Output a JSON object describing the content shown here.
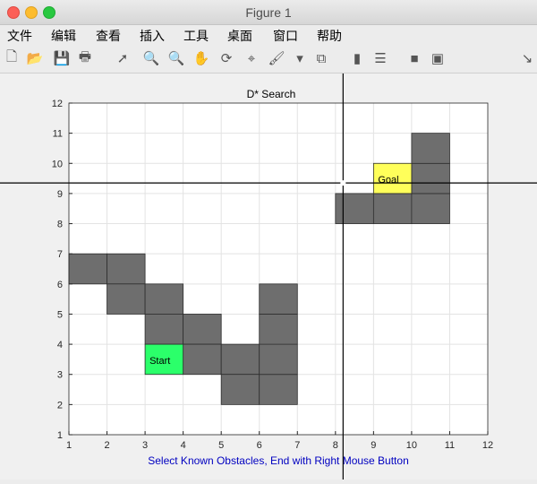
{
  "window": {
    "title": "Figure 1"
  },
  "menu": [
    "文件",
    "编辑",
    "查看",
    "插入",
    "工具",
    "桌面",
    "窗口",
    "帮助"
  ],
  "toolbar": [
    {
      "name": "new-figure-icon",
      "glyph": "🗋"
    },
    {
      "name": "open-file-icon",
      "glyph": "📂"
    },
    {
      "name": "save-icon",
      "glyph": "💾"
    },
    {
      "name": "print-icon",
      "glyph": "🖶"
    },
    {
      "name": "pointer-icon",
      "glyph": "➚"
    },
    {
      "name": "zoom-in-icon",
      "glyph": "🔍"
    },
    {
      "name": "zoom-out-icon",
      "glyph": "🔍"
    },
    {
      "name": "pan-hand-icon",
      "glyph": "✋"
    },
    {
      "name": "rotate-icon",
      "glyph": "⟳"
    },
    {
      "name": "data-cursor-icon",
      "glyph": "⌖"
    },
    {
      "name": "brush-icon",
      "glyph": "🖌"
    },
    {
      "name": "brush-dropdown-icon",
      "glyph": "▾"
    },
    {
      "name": "link-plot-icon",
      "glyph": "⧉"
    },
    {
      "name": "colorbar-icon",
      "glyph": "▮"
    },
    {
      "name": "legend-icon",
      "glyph": "☰"
    },
    {
      "name": "hide-plot-tools-icon",
      "glyph": "■"
    },
    {
      "name": "show-plot-tools-icon",
      "glyph": "▣"
    },
    {
      "name": "dock-arrow-icon",
      "glyph": "↘"
    }
  ],
  "plot": {
    "title": "D* Search",
    "caption": "Select Known Obstacles, End with Right Mouse Button",
    "caption_color": "#0000c0",
    "obstacle_color": "#6e6e6e",
    "start_color": "#2bff6a",
    "goal_color": "#ffff5a"
  },
  "chart_data": {
    "type": "heatmap",
    "title": "D* Search",
    "xlim": [
      1,
      12
    ],
    "ylim": [
      1,
      12
    ],
    "xticks": [
      "1",
      "2",
      "3",
      "4",
      "5",
      "6",
      "7",
      "8",
      "9",
      "10",
      "11",
      "12"
    ],
    "yticks": [
      "1",
      "2",
      "3",
      "4",
      "5",
      "6",
      "7",
      "8",
      "9",
      "10",
      "11",
      "12"
    ],
    "grid": true,
    "obstacles": [
      [
        1,
        6
      ],
      [
        2,
        6
      ],
      [
        2,
        5
      ],
      [
        3,
        5
      ],
      [
        3,
        4
      ],
      [
        4,
        4
      ],
      [
        4,
        3
      ],
      [
        5,
        3
      ],
      [
        5,
        2
      ],
      [
        6,
        2
      ],
      [
        6,
        3
      ],
      [
        6,
        4
      ],
      [
        6,
        5
      ],
      [
        8,
        8
      ],
      [
        9,
        8
      ],
      [
        10,
        8
      ],
      [
        10,
        9
      ],
      [
        10,
        10
      ]
    ],
    "start": {
      "cell": [
        3,
        3
      ],
      "label": "Start"
    },
    "goal": {
      "cell": [
        9,
        9
      ],
      "label": "Goal"
    },
    "crosshair": [
      8.2,
      9.35
    ]
  }
}
